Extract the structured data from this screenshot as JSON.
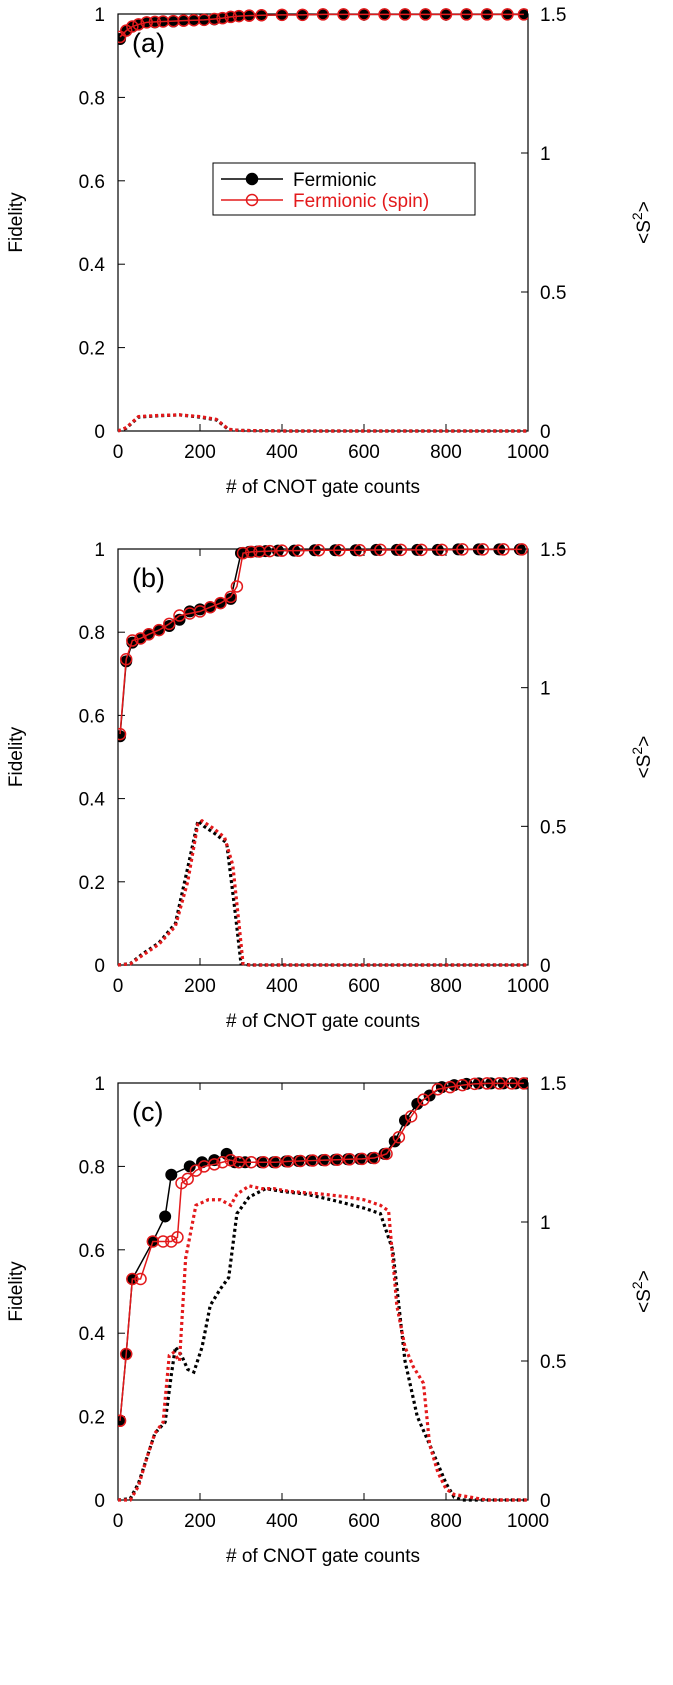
{
  "colors": {
    "fermionic": "#000000",
    "spin": "#e31a1c",
    "axis": "#000000"
  },
  "legend": {
    "items": [
      "Fermionic",
      "Fermionic (spin)"
    ],
    "placement": "center"
  },
  "chart_data": [
    {
      "type": "line",
      "panel_label": "(a)",
      "xlabel": "# of CNOT gate counts",
      "ylabel": "Fidelity",
      "y2label": "<S2>",
      "xlim": [
        0,
        1000
      ],
      "ylim": [
        0,
        1
      ],
      "y2lim": [
        0,
        1.5
      ],
      "xticks": [
        "0",
        "200",
        "400",
        "600",
        "800",
        "1000"
      ],
      "yticks": [
        "0",
        "0.2",
        "0.4",
        "0.6",
        "0.8",
        "1"
      ],
      "y2ticks": [
        "0",
        "0.5",
        "1",
        "1.5"
      ],
      "series": [
        {
          "name": "Fermionic",
          "style": "solid-filled",
          "axis": "left",
          "x": [
            5,
            20,
            35,
            50,
            70,
            90,
            110,
            135,
            160,
            185,
            210,
            235,
            255,
            275,
            295,
            320,
            350,
            400,
            450,
            500,
            550,
            600,
            650,
            700,
            750,
            800,
            850,
            900,
            950,
            990
          ],
          "y": [
            0.94,
            0.96,
            0.97,
            0.975,
            0.98,
            0.98,
            0.982,
            0.982,
            0.984,
            0.985,
            0.986,
            0.987,
            0.99,
            0.993,
            0.995,
            0.996,
            0.997,
            0.998,
            0.998,
            0.999,
            0.999,
            0.999,
            0.999,
            0.999,
            0.999,
            0.999,
            0.999,
            0.999,
            0.999,
            0.999
          ]
        },
        {
          "name": "Fermionic (spin)",
          "style": "solid-open",
          "axis": "left",
          "x": [
            5,
            20,
            35,
            50,
            70,
            90,
            110,
            135,
            160,
            185,
            210,
            235,
            255,
            275,
            295,
            320,
            350,
            400,
            450,
            500,
            550,
            600,
            650,
            700,
            750,
            800,
            850,
            900,
            950,
            990
          ],
          "y": [
            0.945,
            0.96,
            0.97,
            0.975,
            0.98,
            0.981,
            0.982,
            0.983,
            0.984,
            0.985,
            0.986,
            0.988,
            0.99,
            0.993,
            0.995,
            0.996,
            0.997,
            0.998,
            0.998,
            0.999,
            0.999,
            0.999,
            0.999,
            0.999,
            0.999,
            0.999,
            0.999,
            0.999,
            0.999,
            0.999
          ]
        },
        {
          "name": "",
          "style": "dotted",
          "axis": "right",
          "color": "#000000",
          "x": [
            0,
            20,
            50,
            100,
            150,
            200,
            240,
            270,
            300,
            400,
            600,
            800,
            1000
          ],
          "y": [
            0,
            0.01,
            0.05,
            0.055,
            0.058,
            0.05,
            0.04,
            0.005,
            0.002,
            0,
            0,
            0,
            0
          ]
        },
        {
          "name": "",
          "style": "dotted",
          "axis": "right",
          "color": "#e31a1c",
          "x": [
            0,
            20,
            50,
            100,
            150,
            200,
            240,
            270,
            300,
            400,
            600,
            800,
            1000
          ],
          "y": [
            0,
            0.012,
            0.052,
            0.056,
            0.058,
            0.052,
            0.042,
            0.006,
            0.002,
            0,
            0,
            0,
            0
          ]
        }
      ]
    },
    {
      "type": "line",
      "panel_label": "(b)",
      "xlabel": "# of CNOT gate counts",
      "ylabel": "Fidelity",
      "y2label": "<S2>",
      "xlim": [
        0,
        1000
      ],
      "ylim": [
        0,
        1
      ],
      "y2lim": [
        0,
        1.5
      ],
      "xticks": [
        "0",
        "200",
        "400",
        "600",
        "800",
        "1000"
      ],
      "yticks": [
        "0",
        "0.2",
        "0.4",
        "0.6",
        "0.8",
        "1"
      ],
      "y2ticks": [
        "0",
        "0.5",
        "1",
        "1.5"
      ],
      "series": [
        {
          "name": "Fermionic",
          "style": "solid-filled",
          "axis": "left",
          "x": [
            5,
            20,
            35,
            55,
            75,
            100,
            125,
            150,
            175,
            200,
            225,
            250,
            275,
            300,
            320,
            340,
            360,
            390,
            430,
            480,
            530,
            580,
            630,
            680,
            730,
            780,
            830,
            880,
            930,
            980
          ],
          "y": [
            0.55,
            0.73,
            0.775,
            0.785,
            0.795,
            0.805,
            0.815,
            0.83,
            0.85,
            0.855,
            0.86,
            0.87,
            0.88,
            0.99,
            0.993,
            0.994,
            0.995,
            0.996,
            0.996,
            0.997,
            0.997,
            0.997,
            0.998,
            0.998,
            0.998,
            0.998,
            0.999,
            0.999,
            0.999,
            0.999
          ]
        },
        {
          "name": "Fermionic (spin)",
          "style": "solid-open",
          "axis": "left",
          "x": [
            5,
            20,
            35,
            55,
            75,
            100,
            125,
            150,
            175,
            200,
            225,
            250,
            275,
            290,
            305,
            325,
            345,
            370,
            400,
            440,
            490,
            540,
            590,
            640,
            690,
            740,
            790,
            840,
            890,
            940,
            985
          ],
          "y": [
            0.555,
            0.735,
            0.78,
            0.785,
            0.795,
            0.805,
            0.82,
            0.84,
            0.845,
            0.85,
            0.86,
            0.87,
            0.885,
            0.91,
            0.99,
            0.993,
            0.994,
            0.995,
            0.996,
            0.996,
            0.997,
            0.997,
            0.997,
            0.998,
            0.998,
            0.998,
            0.998,
            0.999,
            0.999,
            0.999,
            0.999
          ]
        },
        {
          "name": "",
          "style": "dotted",
          "axis": "right",
          "color": "#000000",
          "x": [
            0,
            30,
            60,
            100,
            140,
            170,
            195,
            210,
            240,
            265,
            285,
            300,
            320,
            400,
            600,
            800,
            1000
          ],
          "y": [
            0,
            0.005,
            0.04,
            0.08,
            0.15,
            0.35,
            0.52,
            0.5,
            0.47,
            0.44,
            0.2,
            0.005,
            0,
            0,
            0,
            0,
            0
          ]
        },
        {
          "name": "",
          "style": "dotted",
          "axis": "right",
          "color": "#e31a1c",
          "x": [
            0,
            30,
            60,
            100,
            140,
            170,
            195,
            205,
            235,
            260,
            280,
            295,
            305,
            320,
            400,
            600,
            800,
            1000
          ],
          "y": [
            0,
            0.004,
            0.035,
            0.075,
            0.14,
            0.3,
            0.51,
            0.52,
            0.49,
            0.46,
            0.36,
            0.15,
            0.005,
            0,
            0,
            0,
            0,
            0
          ]
        }
      ]
    },
    {
      "type": "line",
      "panel_label": "(c)",
      "xlabel": "# of CNOT gate counts",
      "ylabel": "Fidelity",
      "y2label": "<S2>",
      "xlim": [
        0,
        1000
      ],
      "ylim": [
        0,
        1
      ],
      "y2lim": [
        0,
        1.5
      ],
      "xticks": [
        "0",
        "200",
        "400",
        "600",
        "800",
        "1000"
      ],
      "yticks": [
        "0",
        "0.2",
        "0.4",
        "0.6",
        "0.8",
        "1"
      ],
      "y2ticks": [
        "0",
        "0.5",
        "1",
        "1.5"
      ],
      "series": [
        {
          "name": "Fermionic",
          "style": "solid-filled",
          "axis": "left",
          "x": [
            5,
            20,
            35,
            85,
            115,
            130,
            175,
            205,
            235,
            265,
            285,
            310,
            350,
            380,
            410,
            440,
            470,
            500,
            530,
            560,
            590,
            620,
            650,
            675,
            700,
            730,
            760,
            790,
            820,
            850,
            880,
            910,
            940,
            970,
            995
          ],
          "y": [
            0.19,
            0.35,
            0.53,
            0.62,
            0.68,
            0.78,
            0.8,
            0.81,
            0.815,
            0.83,
            0.81,
            0.81,
            0.81,
            0.81,
            0.812,
            0.813,
            0.814,
            0.815,
            0.816,
            0.817,
            0.818,
            0.82,
            0.83,
            0.86,
            0.91,
            0.95,
            0.97,
            0.99,
            0.995,
            0.998,
            0.999,
            0.999,
            0.999,
            0.999,
            0.999
          ]
        },
        {
          "name": "Fermionic (spin)",
          "style": "solid-open",
          "axis": "left",
          "x": [
            5,
            20,
            35,
            55,
            85,
            110,
            130,
            145,
            155,
            170,
            190,
            210,
            235,
            255,
            275,
            295,
            325,
            355,
            385,
            415,
            445,
            475,
            505,
            535,
            565,
            595,
            625,
            655,
            685,
            715,
            745,
            780,
            810,
            840,
            870,
            900,
            930,
            960,
            990
          ],
          "y": [
            0.19,
            0.35,
            0.53,
            0.53,
            0.62,
            0.62,
            0.62,
            0.63,
            0.76,
            0.77,
            0.79,
            0.8,
            0.805,
            0.81,
            0.815,
            0.81,
            0.81,
            0.81,
            0.81,
            0.812,
            0.813,
            0.814,
            0.815,
            0.816,
            0.817,
            0.818,
            0.82,
            0.83,
            0.87,
            0.92,
            0.96,
            0.985,
            0.99,
            0.995,
            0.998,
            0.999,
            0.999,
            0.999,
            0.999
          ]
        },
        {
          "name": "",
          "style": "dotted",
          "axis": "right",
          "color": "#000000",
          "x": [
            0,
            30,
            50,
            70,
            90,
            115,
            130,
            140,
            155,
            170,
            185,
            205,
            225,
            250,
            270,
            290,
            320,
            360,
            400,
            460,
            520,
            600,
            640,
            670,
            700,
            730,
            760,
            800,
            820,
            840,
            900,
            1000
          ],
          "y": [
            0,
            0.005,
            0.06,
            0.15,
            0.24,
            0.28,
            0.45,
            0.55,
            0.52,
            0.47,
            0.46,
            0.55,
            0.7,
            0.76,
            0.8,
            1.03,
            1.09,
            1.12,
            1.11,
            1.1,
            1.08,
            1.05,
            1.03,
            0.9,
            0.5,
            0.3,
            0.2,
            0.06,
            0.01,
            0,
            0,
            0
          ]
        },
        {
          "name": "",
          "style": "dotted",
          "axis": "right",
          "color": "#e31a1c",
          "x": [
            0,
            30,
            50,
            70,
            90,
            110,
            125,
            135,
            150,
            165,
            190,
            220,
            250,
            275,
            290,
            320,
            350,
            380,
            420,
            500,
            560,
            600,
            640,
            660,
            680,
            700,
            720,
            745,
            760,
            780,
            800,
            820,
            900,
            1000
          ],
          "y": [
            0,
            0,
            0.05,
            0.15,
            0.24,
            0.28,
            0.52,
            0.53,
            0.5,
            0.87,
            1.06,
            1.08,
            1.08,
            1.06,
            1.1,
            1.13,
            1.12,
            1.12,
            1.11,
            1.1,
            1.09,
            1.08,
            1.06,
            1.04,
            0.7,
            0.55,
            0.48,
            0.42,
            0.2,
            0.1,
            0.04,
            0.02,
            0,
            0
          ]
        }
      ]
    }
  ]
}
